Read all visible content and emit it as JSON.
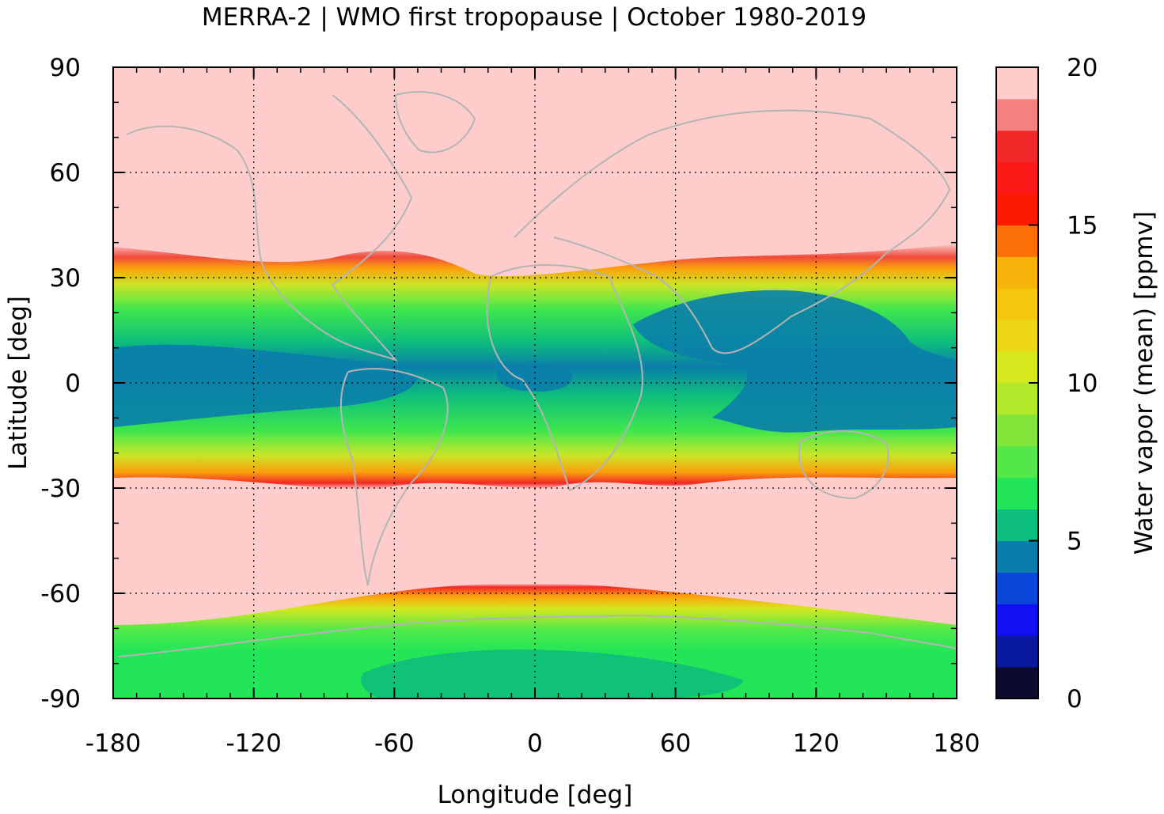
{
  "chart_data": {
    "type": "heatmap",
    "title": "MERRA-2 | WMO first tropopause | October 1980-2019",
    "xlabel": "Longitude [deg]",
    "ylabel": "Latitude [deg]",
    "colorbar_label": "Water vapor (mean) [ppmv]",
    "xlim": [
      -180,
      180
    ],
    "ylim": [
      -90,
      90
    ],
    "x_ticks": [
      "-180",
      "-120",
      "-60",
      "0",
      "60",
      "120",
      "180"
    ],
    "y_ticks": [
      "90",
      "60",
      "30",
      "0",
      "-30",
      "-60",
      "-90"
    ],
    "colorbar_ticks": [
      "20",
      "15",
      "10",
      "5",
      "0"
    ],
    "clim": [
      0,
      20
    ],
    "grid": true,
    "colorbar_levels": [
      {
        "from": 0,
        "to": 1,
        "color": "#0b0b30"
      },
      {
        "from": 1,
        "to": 2,
        "color": "#0a1aa0"
      },
      {
        "from": 2,
        "to": 3,
        "color": "#1010f0"
      },
      {
        "from": 3,
        "to": 4,
        "color": "#0a46d8"
      },
      {
        "from": 4,
        "to": 5,
        "color": "#0a7eaa"
      },
      {
        "from": 5,
        "to": 6,
        "color": "#0ebe7c"
      },
      {
        "from": 6,
        "to": 7,
        "color": "#22e658"
      },
      {
        "from": 7,
        "to": 8,
        "color": "#52e84a"
      },
      {
        "from": 8,
        "to": 9,
        "color": "#82e63a"
      },
      {
        "from": 9,
        "to": 10,
        "color": "#b0e82a"
      },
      {
        "from": 10,
        "to": 11,
        "color": "#d6e81e"
      },
      {
        "from": 11,
        "to": 12,
        "color": "#ecd616"
      },
      {
        "from": 12,
        "to": 13,
        "color": "#f4c60e"
      },
      {
        "from": 13,
        "to": 14,
        "color": "#f6b40a"
      },
      {
        "from": 14,
        "to": 15,
        "color": "#fc7008"
      },
      {
        "from": 15,
        "to": 16,
        "color": "#fe1a02"
      },
      {
        "from": 16,
        "to": 17,
        "color": "#fc1a18"
      },
      {
        "from": 17,
        "to": 18,
        "color": "#f02828"
      },
      {
        "from": 18,
        "to": 19,
        "color": "#f48080"
      },
      {
        "from": 19,
        "to": 20,
        "color": "#ffcccc"
      }
    ],
    "land_outline_color": "#b4b4b4"
  }
}
